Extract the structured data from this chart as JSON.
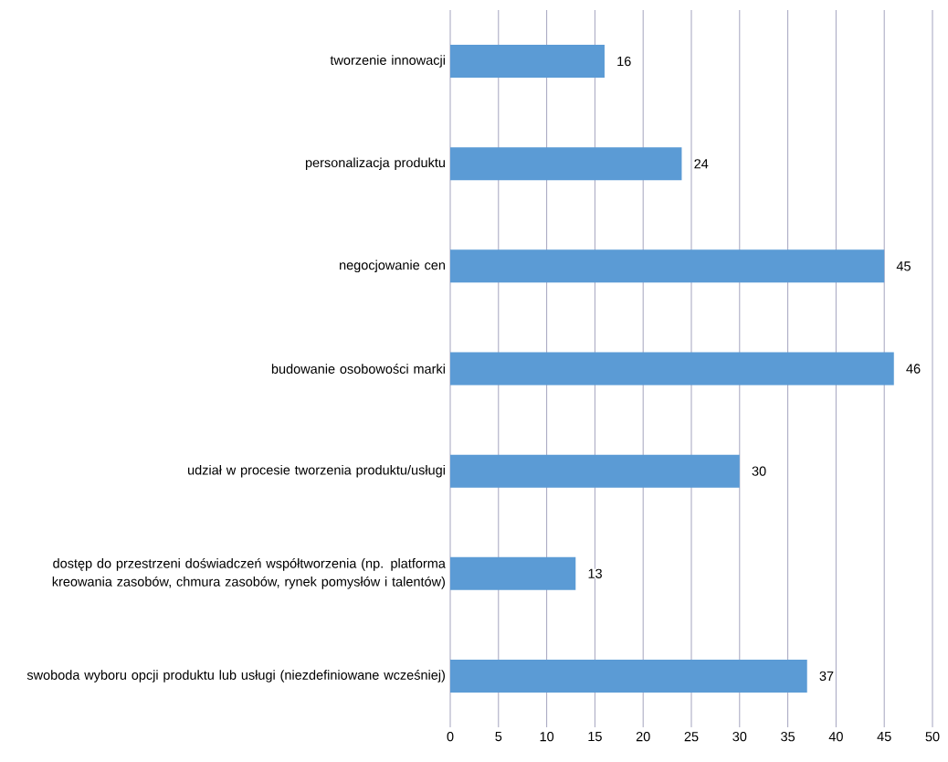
{
  "chart_data": {
    "type": "bar",
    "orientation": "horizontal",
    "categories": [
      "tworzenie innowacji",
      "personalizacja produktu",
      "negocjowanie cen",
      "budowanie osobowości marki",
      "udział w procesie tworzenia produktu/usługi",
      "dostęp do przestrzeni doświadczeń współtworzenia (np. platforma kreowania zasobów, chmura zasobów, rynek pomysłów i talentów)",
      "swoboda wyboru opcji produktu lub usługi (niezdefiniowane wcześniej)"
    ],
    "values": [
      16,
      24,
      45,
      46,
      30,
      13,
      37
    ],
    "color": "#5b9bd5",
    "xlim": [
      0,
      50
    ],
    "xticks": [
      0,
      5,
      10,
      15,
      20,
      25,
      30,
      35,
      40,
      45,
      50
    ],
    "grid": "x",
    "data_labels": true
  }
}
